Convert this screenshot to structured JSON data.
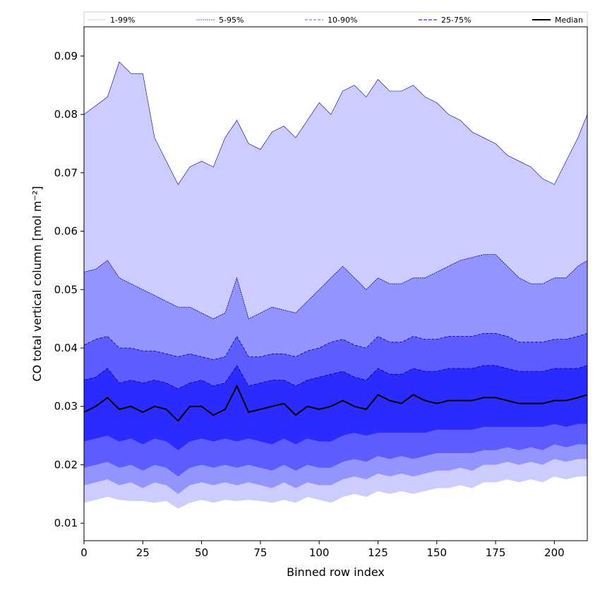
{
  "chart_data": {
    "type": "area",
    "title": "",
    "xlabel": "Binned row index",
    "ylabel": "CO total vertical column [mol m⁻²]",
    "xlim": [
      0,
      214
    ],
    "ylim": [
      0.007,
      0.095
    ],
    "xticks": [
      0,
      25,
      50,
      75,
      100,
      125,
      150,
      175,
      200
    ],
    "yticks": [
      0.01,
      0.02,
      0.03,
      0.04,
      0.05,
      0.06,
      0.07,
      0.08,
      0.09
    ],
    "ytick_labels": [
      "0.01",
      "0.02",
      "0.03",
      "0.04",
      "0.05",
      "0.06",
      "0.07",
      "0.08",
      "0.09"
    ],
    "legend_position": "top, above plot",
    "colors": {
      "band_1_99": "#ccccff",
      "band_5_95": "#9494ff",
      "band_10_90": "#5c5cff",
      "band_25_75": "#2b2bff",
      "median": "#000000",
      "edge_line": "#00008b"
    },
    "x": [
      0,
      5,
      10,
      15,
      20,
      25,
      30,
      35,
      40,
      45,
      50,
      55,
      60,
      65,
      70,
      75,
      80,
      85,
      90,
      95,
      100,
      105,
      110,
      115,
      120,
      125,
      130,
      135,
      140,
      145,
      150,
      155,
      160,
      165,
      170,
      175,
      180,
      185,
      190,
      195,
      200,
      205,
      210,
      214
    ],
    "series": [
      {
        "name": "1-99%",
        "lower": [
          0.0135,
          0.014,
          0.0145,
          0.014,
          0.0138,
          0.0138,
          0.0135,
          0.0138,
          0.0125,
          0.0135,
          0.014,
          0.0135,
          0.014,
          0.0138,
          0.014,
          0.0138,
          0.0135,
          0.014,
          0.0135,
          0.0145,
          0.014,
          0.0135,
          0.0145,
          0.015,
          0.0145,
          0.0155,
          0.015,
          0.0155,
          0.015,
          0.0155,
          0.016,
          0.016,
          0.0165,
          0.016,
          0.017,
          0.017,
          0.0175,
          0.017,
          0.0175,
          0.017,
          0.018,
          0.0175,
          0.018,
          0.018
        ],
        "upper": [
          0.08,
          0.0815,
          0.083,
          0.089,
          0.087,
          0.087,
          0.076,
          0.072,
          0.068,
          0.071,
          0.072,
          0.071,
          0.076,
          0.079,
          0.075,
          0.074,
          0.077,
          0.078,
          0.076,
          0.079,
          0.082,
          0.08,
          0.084,
          0.085,
          0.083,
          0.086,
          0.084,
          0.084,
          0.085,
          0.083,
          0.082,
          0.08,
          0.079,
          0.077,
          0.076,
          0.075,
          0.073,
          0.072,
          0.071,
          0.069,
          0.068,
          0.072,
          0.076,
          0.08
        ]
      },
      {
        "name": "5-95%",
        "lower": [
          0.0165,
          0.017,
          0.0175,
          0.0165,
          0.017,
          0.016,
          0.017,
          0.0165,
          0.015,
          0.0165,
          0.017,
          0.0165,
          0.017,
          0.0165,
          0.017,
          0.0165,
          0.016,
          0.017,
          0.016,
          0.017,
          0.0165,
          0.0165,
          0.0175,
          0.018,
          0.0175,
          0.0185,
          0.018,
          0.0185,
          0.018,
          0.0185,
          0.019,
          0.019,
          0.0195,
          0.019,
          0.02,
          0.02,
          0.0205,
          0.02,
          0.0205,
          0.02,
          0.021,
          0.0205,
          0.021,
          0.021
        ],
        "upper": [
          0.053,
          0.0535,
          0.055,
          0.052,
          0.051,
          0.05,
          0.049,
          0.048,
          0.047,
          0.047,
          0.046,
          0.045,
          0.046,
          0.052,
          0.045,
          0.046,
          0.047,
          0.0465,
          0.046,
          0.048,
          0.05,
          0.052,
          0.054,
          0.052,
          0.05,
          0.052,
          0.051,
          0.051,
          0.052,
          0.052,
          0.053,
          0.054,
          0.055,
          0.0555,
          0.056,
          0.056,
          0.054,
          0.052,
          0.051,
          0.051,
          0.052,
          0.052,
          0.054,
          0.055
        ]
      },
      {
        "name": "10-90%",
        "lower": [
          0.0195,
          0.02,
          0.0205,
          0.0195,
          0.02,
          0.019,
          0.02,
          0.0195,
          0.018,
          0.0195,
          0.02,
          0.0195,
          0.02,
          0.0195,
          0.02,
          0.0195,
          0.019,
          0.02,
          0.019,
          0.02,
          0.0195,
          0.0195,
          0.0205,
          0.021,
          0.0205,
          0.0215,
          0.021,
          0.0215,
          0.021,
          0.0215,
          0.022,
          0.022,
          0.022,
          0.022,
          0.0225,
          0.0225,
          0.023,
          0.0225,
          0.023,
          0.0225,
          0.0235,
          0.023,
          0.0235,
          0.0235
        ],
        "upper": [
          0.0405,
          0.0415,
          0.042,
          0.04,
          0.04,
          0.0395,
          0.0395,
          0.039,
          0.0385,
          0.039,
          0.0385,
          0.038,
          0.0385,
          0.042,
          0.0385,
          0.0385,
          0.039,
          0.039,
          0.0385,
          0.0395,
          0.04,
          0.041,
          0.0415,
          0.0405,
          0.04,
          0.042,
          0.041,
          0.041,
          0.042,
          0.0415,
          0.0415,
          0.042,
          0.042,
          0.042,
          0.0425,
          0.0425,
          0.042,
          0.041,
          0.041,
          0.041,
          0.0415,
          0.0415,
          0.042,
          0.0425
        ]
      },
      {
        "name": "25-75%",
        "lower": [
          0.024,
          0.0245,
          0.025,
          0.024,
          0.0245,
          0.0235,
          0.0245,
          0.024,
          0.0225,
          0.024,
          0.0245,
          0.024,
          0.0245,
          0.024,
          0.0245,
          0.024,
          0.0235,
          0.0245,
          0.0235,
          0.0245,
          0.024,
          0.024,
          0.025,
          0.0255,
          0.025,
          0.0255,
          0.0255,
          0.0255,
          0.0255,
          0.0255,
          0.026,
          0.026,
          0.026,
          0.026,
          0.0265,
          0.0265,
          0.0265,
          0.0265,
          0.0265,
          0.0265,
          0.027,
          0.0265,
          0.027,
          0.027
        ],
        "upper": [
          0.0345,
          0.035,
          0.0365,
          0.034,
          0.0345,
          0.034,
          0.0345,
          0.034,
          0.033,
          0.034,
          0.0345,
          0.0335,
          0.034,
          0.037,
          0.0335,
          0.034,
          0.0345,
          0.0345,
          0.0335,
          0.0345,
          0.035,
          0.0355,
          0.036,
          0.035,
          0.0345,
          0.0365,
          0.0355,
          0.0355,
          0.0365,
          0.036,
          0.036,
          0.0365,
          0.0365,
          0.0365,
          0.037,
          0.037,
          0.0365,
          0.036,
          0.036,
          0.036,
          0.0365,
          0.0365,
          0.0365,
          0.037
        ]
      },
      {
        "name": "Median",
        "values": [
          0.029,
          0.03,
          0.0315,
          0.0295,
          0.03,
          0.029,
          0.03,
          0.0295,
          0.0275,
          0.03,
          0.03,
          0.0285,
          0.0295,
          0.0335,
          0.029,
          0.0295,
          0.03,
          0.0305,
          0.0285,
          0.03,
          0.0295,
          0.03,
          0.031,
          0.03,
          0.0295,
          0.032,
          0.031,
          0.0305,
          0.032,
          0.031,
          0.0305,
          0.031,
          0.031,
          0.031,
          0.0315,
          0.0315,
          0.031,
          0.0305,
          0.0305,
          0.0305,
          0.031,
          0.031,
          0.0315,
          0.032
        ]
      }
    ]
  }
}
